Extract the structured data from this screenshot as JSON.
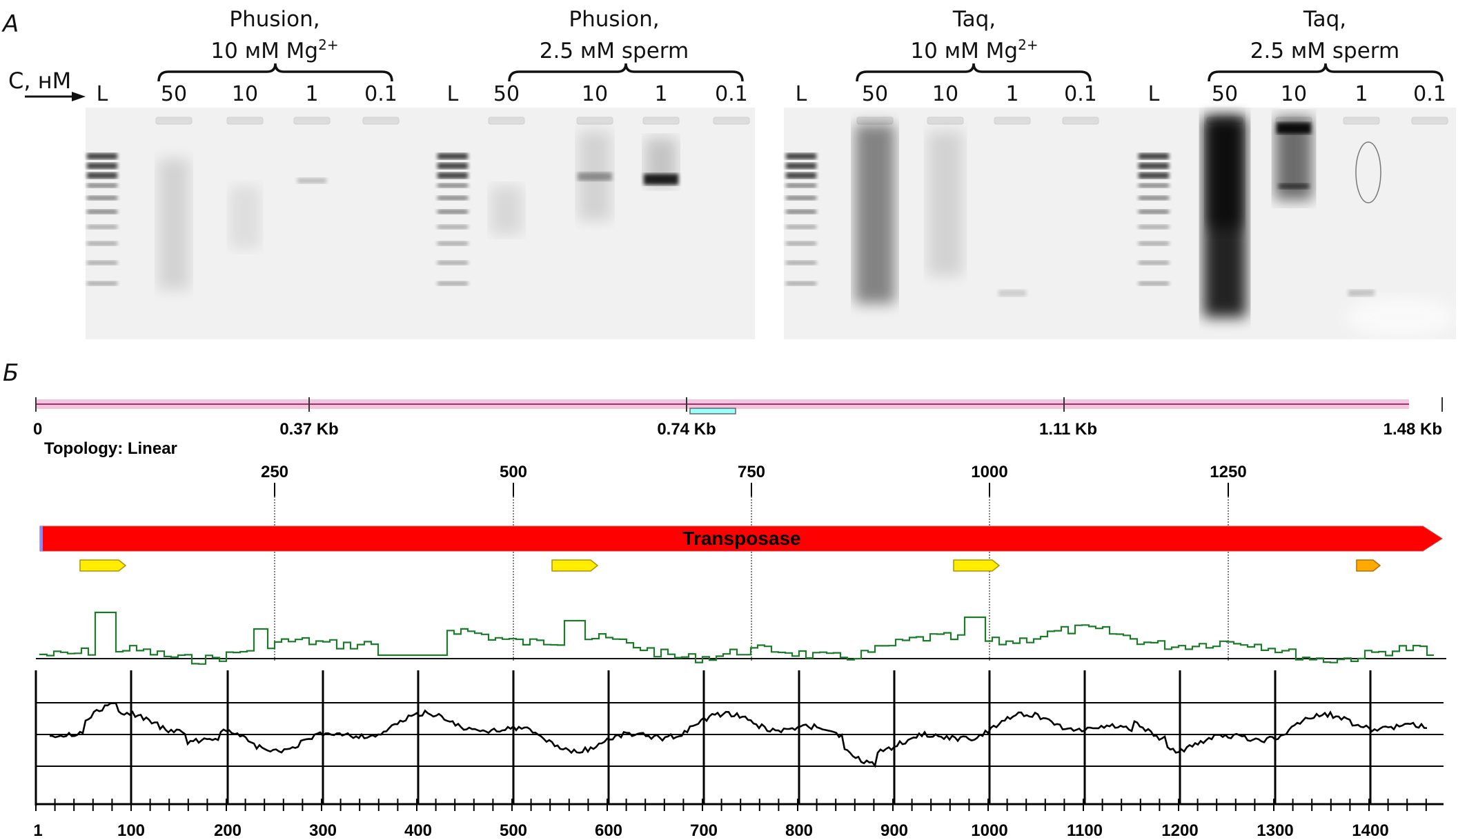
{
  "panel_a": {
    "panel_label": "А",
    "conc_label": "С, нМ",
    "gels": [
      {
        "groups": [
          {
            "title_line1": "Phusion,",
            "title_line2_prefix": "10 мМ Mg",
            "title_line2_sup": "2+",
            "lanes": [
              "50",
              "10",
              "1",
              "0.1"
            ]
          },
          {
            "title_line1": "Phusion,",
            "title_line2_prefix": "2.5 мМ sperm",
            "title_line2_sup": "",
            "lanes": [
              "50",
              "10",
              "1",
              "0.1"
            ]
          }
        ]
      },
      {
        "groups": [
          {
            "title_line1": "Taq,",
            "title_line2_prefix": "10 мМ Mg",
            "title_line2_sup": "2+",
            "lanes": [
              "50",
              "10",
              "1",
              "0.1"
            ]
          },
          {
            "title_line1": "Taq,",
            "title_line2_prefix": "2.5 мМ sperm",
            "title_line2_sup": "",
            "lanes": [
              "50",
              "10",
              "1",
              "0.1"
            ]
          }
        ]
      }
    ],
    "ladder_label": "L"
  },
  "panel_b": {
    "panel_label": "Б",
    "ruler_ticks": [
      "0",
      "0.37 Kb",
      "0.74 Kb",
      "1.11 Kb",
      "1.48 Kb"
    ],
    "topology": "Topology: Linear",
    "position_ticks": [
      "250",
      "500",
      "750",
      "1000",
      "1250"
    ],
    "feature_label": "Transposase",
    "feature_color": "#ff0000",
    "bottom_axis": [
      "1",
      "100",
      "200",
      "300",
      "400",
      "500",
      "600",
      "700",
      "800",
      "900",
      "1000",
      "1100",
      "1200",
      "1300",
      "1400"
    ]
  }
}
